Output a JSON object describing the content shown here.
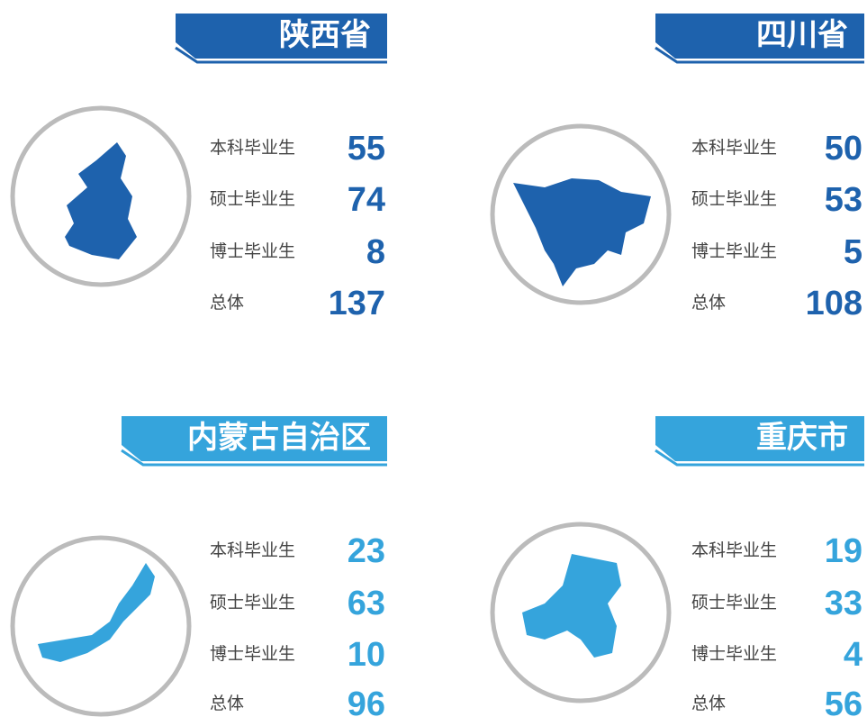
{
  "panels": [
    {
      "name": "陕西省",
      "color": "#1e62ad",
      "rows": [
        {
          "label": "本科毕业生",
          "value": 55
        },
        {
          "label": "硕士毕业生",
          "value": 74
        },
        {
          "label": "博士毕业生",
          "value": 8
        },
        {
          "label": "总体",
          "value": 137
        }
      ]
    },
    {
      "name": "四川省",
      "color": "#1e62ad",
      "rows": [
        {
          "label": "本科毕业生",
          "value": 50
        },
        {
          "label": "硕士毕业生",
          "value": 53
        },
        {
          "label": "博士毕业生",
          "value": 5
        },
        {
          "label": "总体",
          "value": 108
        }
      ]
    },
    {
      "name": "内蒙古自治区",
      "color": "#35a4dc",
      "rows": [
        {
          "label": "本科毕业生",
          "value": 23
        },
        {
          "label": "硕士毕业生",
          "value": 63
        },
        {
          "label": "博士毕业生",
          "value": 10
        },
        {
          "label": "总体",
          "value": 96
        }
      ]
    },
    {
      "name": "重庆市",
      "color": "#35a4dc",
      "rows": [
        {
          "label": "本科毕业生",
          "value": 19
        },
        {
          "label": "硕士毕业生",
          "value": 33
        },
        {
          "label": "博士毕业生",
          "value": 4
        },
        {
          "label": "总体",
          "value": 56
        }
      ]
    }
  ]
}
